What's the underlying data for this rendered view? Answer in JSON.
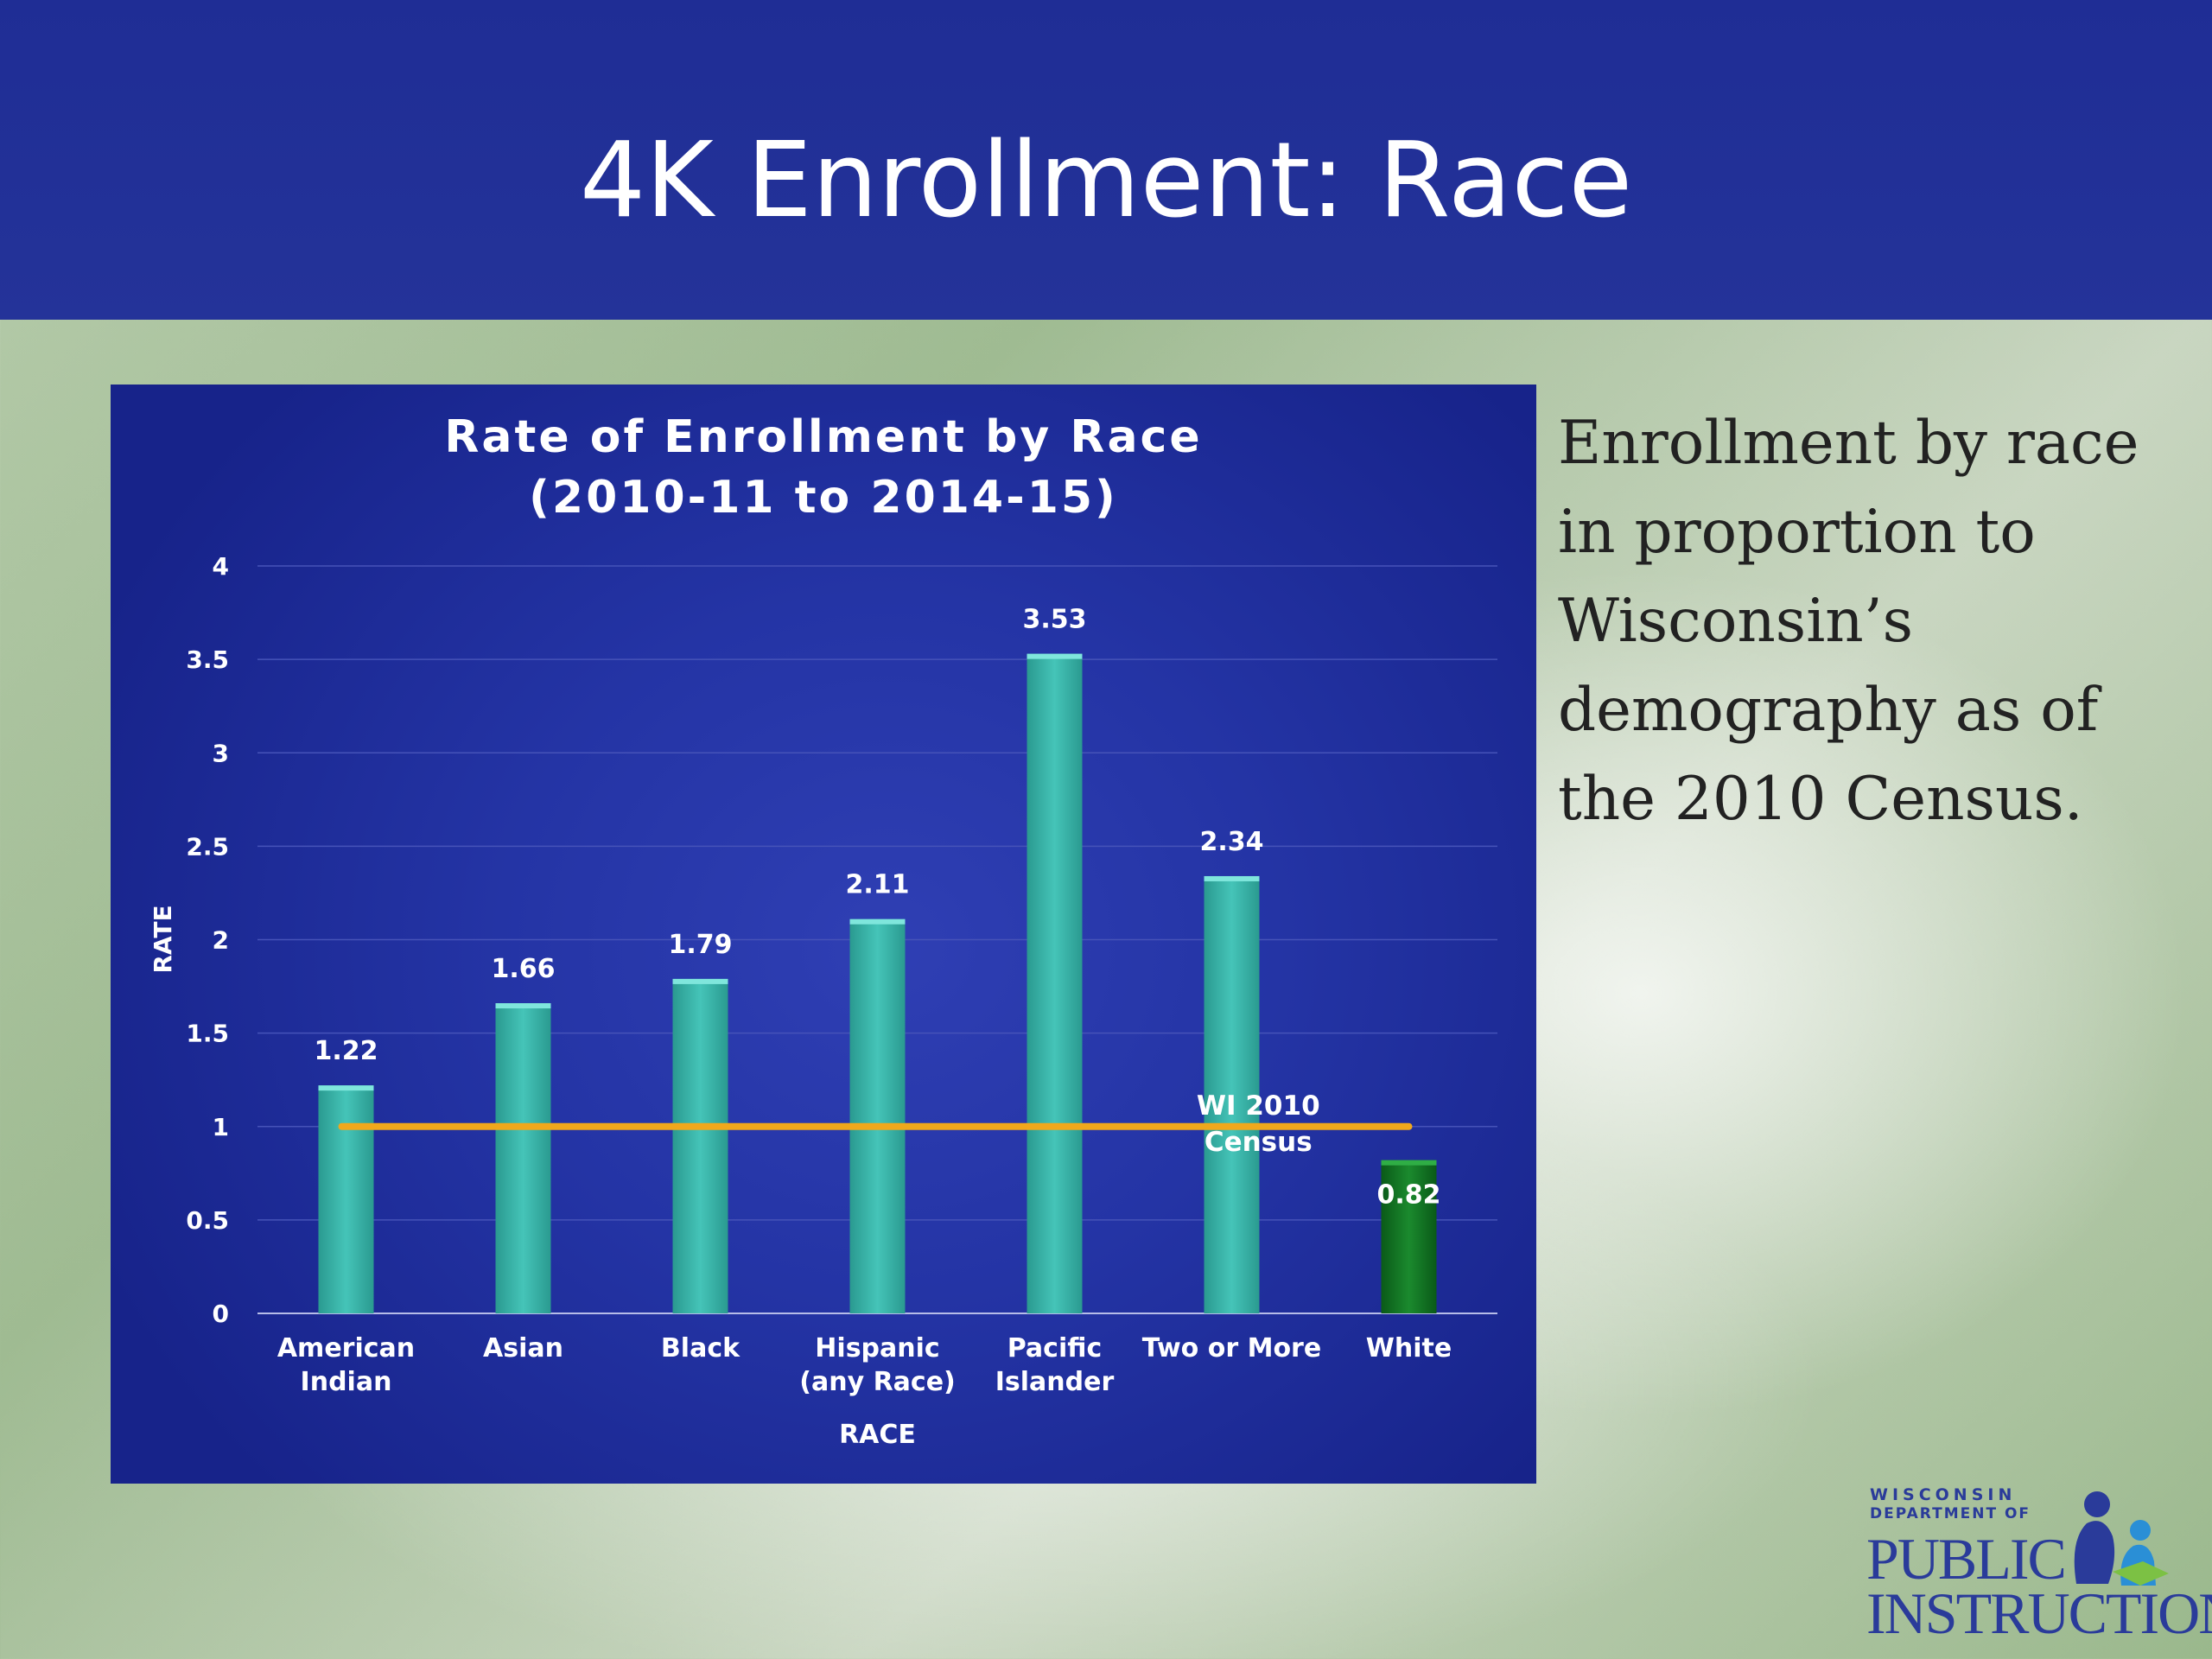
{
  "slide": {
    "title": "4K Enrollment: Race",
    "side_text": "Enrollment by race in proportion to Wisconsin’s demography as of the 2010 Census."
  },
  "logo": {
    "line1": "WISCONSIN",
    "line2": "DEPARTMENT OF",
    "line3": "PUBLIC",
    "line4": "INSTRUCTION"
  },
  "colors": {
    "header": "#2232a0",
    "bar": "#3bb3a8",
    "bar_highlight": "#0d6b1e",
    "reference_line": "#f0a81c"
  },
  "chart_data": {
    "type": "bar",
    "title_lines": [
      "Rate of Enrollment by Race",
      "(2010-11 to 2014-15)"
    ],
    "xlabel": "RACE",
    "ylabel": "RATE",
    "ylim": [
      0,
      4
    ],
    "yticks": [
      "0",
      "0.5",
      "1",
      "1.5",
      "2",
      "2.5",
      "3",
      "3.5",
      "4"
    ],
    "grid": true,
    "categories": [
      [
        "American",
        "Indian"
      ],
      [
        "Asian"
      ],
      [
        "Black"
      ],
      [
        "Hispanic",
        "(any Race)"
      ],
      [
        "Pacific",
        "Islander"
      ],
      [
        "Two or More"
      ],
      [
        "White"
      ]
    ],
    "values": [
      1.22,
      1.66,
      1.79,
      2.11,
      3.53,
      2.34,
      0.82
    ],
    "value_labels": [
      "1.22",
      "1.66",
      "1.79",
      "2.11",
      "3.53",
      "2.34",
      "0.82"
    ],
    "reference_line": {
      "value": 1,
      "label_lines": [
        "WI 2010",
        "Census"
      ]
    }
  }
}
